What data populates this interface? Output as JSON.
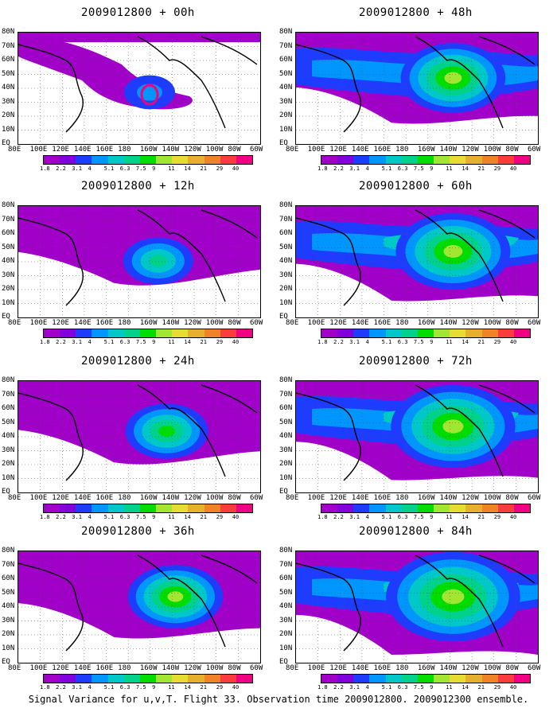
{
  "figure": {
    "caption": "Signal Variance for u,v,T. Flight 33. Observation time 2009012800. 2009012300 ensemble."
  },
  "panels": [
    {
      "title": "2009012800 + 00h",
      "lead": 0
    },
    {
      "title": "2009012800 + 48h",
      "lead": 48
    },
    {
      "title": "2009012800 + 12h",
      "lead": 12
    },
    {
      "title": "2009012800 + 60h",
      "lead": 60
    },
    {
      "title": "2009012800 + 24h",
      "lead": 24
    },
    {
      "title": "2009012800 + 72h",
      "lead": 72
    },
    {
      "title": "2009012800 + 36h",
      "lead": 36
    },
    {
      "title": "2009012800 + 84h",
      "lead": 84
    }
  ],
  "map": {
    "lon_labels": [
      "80E",
      "100E",
      "120E",
      "140E",
      "160E",
      "180",
      "160W",
      "140W",
      "120W",
      "100W",
      "80W",
      "60W"
    ],
    "lat_labels": [
      "80N",
      "70N",
      "60N",
      "50N",
      "40N",
      "30N",
      "20N",
      "10N",
      "EQ"
    ]
  },
  "colorbar": {
    "levels": [
      "1.8",
      "2.2",
      "3.1",
      "4",
      "5.1",
      "6.3",
      "7.5",
      "9",
      "11",
      "14",
      "21",
      "29",
      "40"
    ],
    "colors": [
      "#a000c8",
      "#8200dc",
      "#1e3cff",
      "#0096ff",
      "#00c8c8",
      "#00d28c",
      "#00dc00",
      "#a0e632",
      "#e6dc32",
      "#e6af2d",
      "#f08228",
      "#fa3c3c",
      "#f00082"
    ]
  }
}
